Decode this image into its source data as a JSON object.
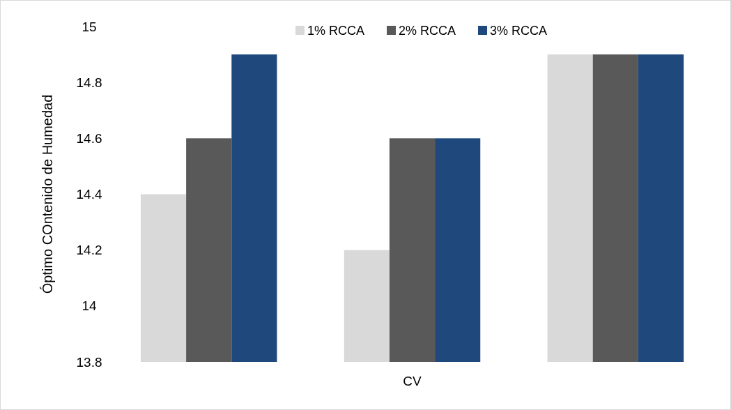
{
  "chart_data": {
    "type": "bar",
    "ylabel": "Óptimo COntenido de Humedad",
    "categories": [
      null,
      "CV",
      null
    ],
    "series": [
      {
        "name": "1% RCCA",
        "color": "#d9d9d9",
        "values": [
          14.4,
          14.2,
          14.9
        ]
      },
      {
        "name": "2% RCCA",
        "color": "#595959",
        "values": [
          14.6,
          14.6,
          14.9
        ]
      },
      {
        "name": "3% RCCA",
        "color": "#1f497d",
        "values": [
          14.9,
          14.6,
          14.9
        ]
      }
    ],
    "ylim": [
      13.8,
      15
    ],
    "yticks": [
      13.8,
      14,
      14.2,
      14.4,
      14.6,
      14.8,
      15
    ],
    "grid": false,
    "legend": "top"
  }
}
